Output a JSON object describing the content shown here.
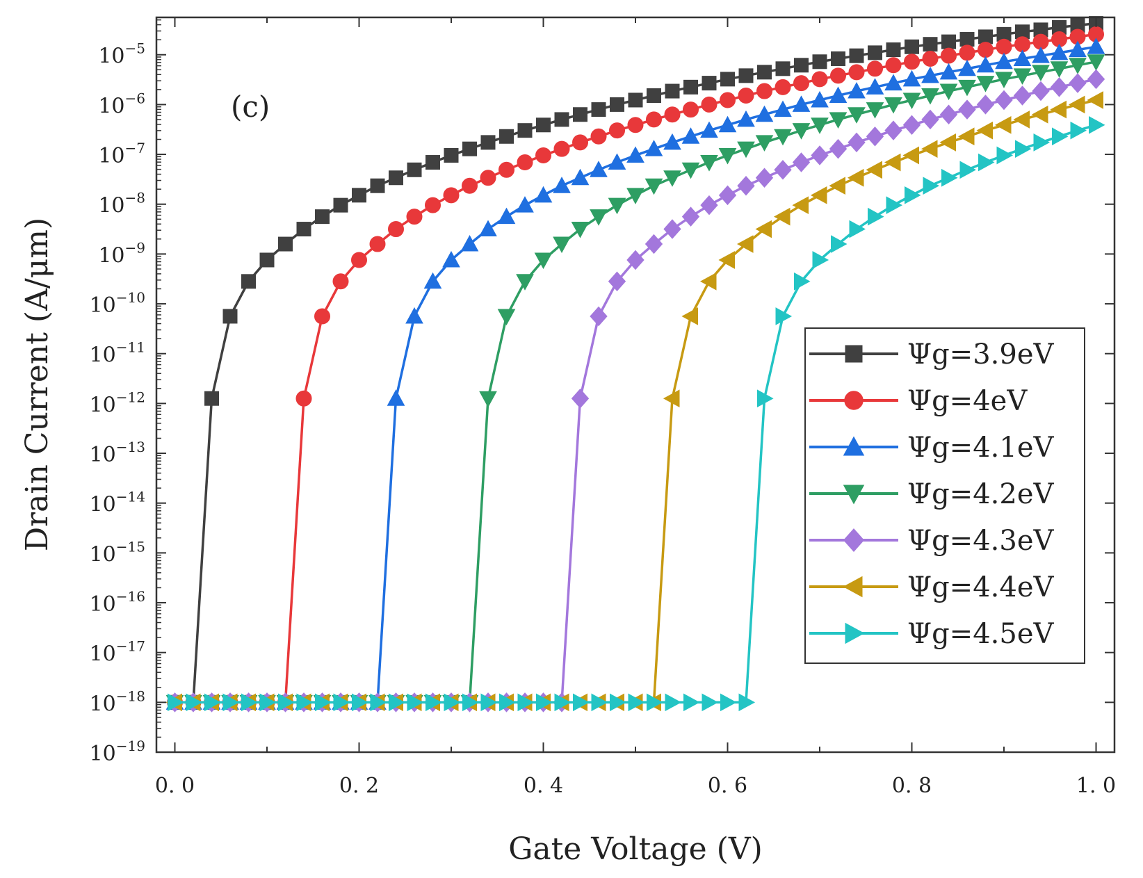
{
  "chart_data": {
    "type": "line",
    "panel_label": "(c)",
    "xlabel": "Gate Voltage (V)",
    "ylabel": "Drain Current (A/μm)",
    "y_scale": "log",
    "xlim": [
      -0.02,
      1.02
    ],
    "ylim_exponent": [
      -19,
      -4.25
    ],
    "x_ticks": [
      {
        "value": 0.0,
        "label": "0. 0"
      },
      {
        "value": 0.2,
        "label": "0. 2"
      },
      {
        "value": 0.4,
        "label": "0. 4"
      },
      {
        "value": 0.6,
        "label": "0. 6"
      },
      {
        "value": 0.8,
        "label": "0. 8"
      },
      {
        "value": 1.0,
        "label": "1. 0"
      }
    ],
    "y_ticks": [
      {
        "exponent": -19,
        "base": "10",
        "exp_label": "−19"
      },
      {
        "exponent": -18,
        "base": "10",
        "exp_label": "−18"
      },
      {
        "exponent": -17,
        "base": "10",
        "exp_label": "−17"
      },
      {
        "exponent": -16,
        "base": "10",
        "exp_label": "−16"
      },
      {
        "exponent": -15,
        "base": "10",
        "exp_label": "−15"
      },
      {
        "exponent": -14,
        "base": "10",
        "exp_label": "−14"
      },
      {
        "exponent": -13,
        "base": "10",
        "exp_label": "−13"
      },
      {
        "exponent": -12,
        "base": "10",
        "exp_label": "−12"
      },
      {
        "exponent": -11,
        "base": "10",
        "exp_label": "−11"
      },
      {
        "exponent": -10,
        "base": "10",
        "exp_label": "−10"
      },
      {
        "exponent": -9,
        "base": "10",
        "exp_label": "−9"
      },
      {
        "exponent": -8,
        "base": "10",
        "exp_label": "−8"
      },
      {
        "exponent": -7,
        "base": "10",
        "exp_label": "−7"
      },
      {
        "exponent": -6,
        "base": "10",
        "exp_label": "−6"
      },
      {
        "exponent": -5,
        "base": "10",
        "exp_label": "−5"
      }
    ],
    "legend_position": "right-middle",
    "series": [
      {
        "name": "Ψg=3.9eV",
        "color": "#404040",
        "marker": "square",
        "threshold_v": 0.02,
        "points": [
          [
            0.04,
            -11.9
          ],
          [
            0.06,
            -10.25
          ],
          [
            0.08,
            -9.55
          ],
          [
            0.1,
            -9.12
          ],
          [
            0.12,
            -8.8
          ],
          [
            0.14,
            -8.5
          ],
          [
            0.16,
            -8.25
          ],
          [
            0.18,
            -8.02
          ],
          [
            0.2,
            -7.82
          ],
          [
            0.22,
            -7.63
          ],
          [
            0.24,
            -7.47
          ],
          [
            0.26,
            -7.31
          ],
          [
            0.28,
            -7.16
          ],
          [
            0.3,
            -7.02
          ],
          [
            0.32,
            -6.89
          ],
          [
            0.34,
            -6.76
          ],
          [
            0.36,
            -6.64
          ],
          [
            0.38,
            -6.52
          ],
          [
            0.4,
            -6.41
          ],
          [
            0.42,
            -6.3
          ],
          [
            0.44,
            -6.2
          ],
          [
            0.46,
            -6.1
          ],
          [
            0.48,
            -6.0
          ],
          [
            0.5,
            -5.91
          ],
          [
            0.52,
            -5.82
          ],
          [
            0.54,
            -5.73
          ],
          [
            0.56,
            -5.65
          ],
          [
            0.58,
            -5.57
          ],
          [
            0.6,
            -5.49
          ],
          [
            0.62,
            -5.42
          ],
          [
            0.64,
            -5.35
          ],
          [
            0.66,
            -5.28
          ],
          [
            0.68,
            -5.21
          ],
          [
            0.7,
            -5.14
          ],
          [
            0.72,
            -5.08
          ],
          [
            0.74,
            -5.02
          ],
          [
            0.76,
            -4.96
          ],
          [
            0.78,
            -4.9
          ],
          [
            0.8,
            -4.84
          ],
          [
            0.82,
            -4.79
          ],
          [
            0.84,
            -4.74
          ],
          [
            0.86,
            -4.69
          ],
          [
            0.88,
            -4.64
          ],
          [
            0.9,
            -4.59
          ],
          [
            0.92,
            -4.54
          ],
          [
            0.94,
            -4.5
          ],
          [
            0.96,
            -4.45
          ],
          [
            0.98,
            -4.41
          ],
          [
            1.0,
            -4.37
          ]
        ]
      },
      {
        "name": "Ψg=4eV",
        "color": "#e8383a",
        "marker": "circle",
        "threshold_v": 0.12,
        "points": [
          [
            0.14,
            -11.9
          ],
          [
            0.16,
            -10.25
          ],
          [
            0.18,
            -9.55
          ],
          [
            0.2,
            -9.12
          ],
          [
            0.22,
            -8.8
          ],
          [
            0.24,
            -8.5
          ],
          [
            0.26,
            -8.25
          ],
          [
            0.28,
            -8.02
          ],
          [
            0.3,
            -7.82
          ],
          [
            0.32,
            -7.63
          ],
          [
            0.34,
            -7.47
          ],
          [
            0.36,
            -7.31
          ],
          [
            0.38,
            -7.16
          ],
          [
            0.4,
            -7.02
          ],
          [
            0.42,
            -6.89
          ],
          [
            0.44,
            -6.76
          ],
          [
            0.46,
            -6.64
          ],
          [
            0.48,
            -6.52
          ],
          [
            0.5,
            -6.41
          ],
          [
            0.52,
            -6.3
          ],
          [
            0.54,
            -6.2
          ],
          [
            0.56,
            -6.1
          ],
          [
            0.58,
            -6.0
          ],
          [
            0.6,
            -5.91
          ],
          [
            0.62,
            -5.82
          ],
          [
            0.64,
            -5.73
          ],
          [
            0.66,
            -5.65
          ],
          [
            0.68,
            -5.57
          ],
          [
            0.7,
            -5.49
          ],
          [
            0.72,
            -5.42
          ],
          [
            0.74,
            -5.35
          ],
          [
            0.76,
            -5.28
          ],
          [
            0.78,
            -5.21
          ],
          [
            0.8,
            -5.14
          ],
          [
            0.82,
            -5.08
          ],
          [
            0.84,
            -5.02
          ],
          [
            0.86,
            -4.96
          ],
          [
            0.88,
            -4.9
          ],
          [
            0.9,
            -4.84
          ],
          [
            0.92,
            -4.79
          ],
          [
            0.94,
            -4.74
          ],
          [
            0.96,
            -4.69
          ],
          [
            0.98,
            -4.64
          ],
          [
            1.0,
            -4.59
          ]
        ]
      },
      {
        "name": "Ψg=4.1eV",
        "color": "#1f6fe0",
        "marker": "triangle-up",
        "threshold_v": 0.22,
        "points": [
          [
            0.24,
            -11.9
          ],
          [
            0.26,
            -10.25
          ],
          [
            0.28,
            -9.55
          ],
          [
            0.3,
            -9.12
          ],
          [
            0.32,
            -8.8
          ],
          [
            0.34,
            -8.5
          ],
          [
            0.36,
            -8.25
          ],
          [
            0.38,
            -8.02
          ],
          [
            0.4,
            -7.82
          ],
          [
            0.42,
            -7.63
          ],
          [
            0.44,
            -7.47
          ],
          [
            0.46,
            -7.31
          ],
          [
            0.48,
            -7.16
          ],
          [
            0.5,
            -7.02
          ],
          [
            0.52,
            -6.89
          ],
          [
            0.54,
            -6.76
          ],
          [
            0.56,
            -6.64
          ],
          [
            0.58,
            -6.52
          ],
          [
            0.6,
            -6.41
          ],
          [
            0.62,
            -6.3
          ],
          [
            0.64,
            -6.2
          ],
          [
            0.66,
            -6.1
          ],
          [
            0.68,
            -6.0
          ],
          [
            0.7,
            -5.91
          ],
          [
            0.72,
            -5.82
          ],
          [
            0.74,
            -5.73
          ],
          [
            0.76,
            -5.65
          ],
          [
            0.78,
            -5.57
          ],
          [
            0.8,
            -5.49
          ],
          [
            0.82,
            -5.42
          ],
          [
            0.84,
            -5.35
          ],
          [
            0.86,
            -5.28
          ],
          [
            0.88,
            -5.21
          ],
          [
            0.9,
            -5.14
          ],
          [
            0.92,
            -5.08
          ],
          [
            0.94,
            -5.02
          ],
          [
            0.96,
            -4.96
          ],
          [
            0.98,
            -4.9
          ],
          [
            1.0,
            -4.84
          ]
        ]
      },
      {
        "name": "Ψg=4.2eV",
        "color": "#2e9e63",
        "marker": "triangle-down",
        "threshold_v": 0.32,
        "points": [
          [
            0.34,
            -11.9
          ],
          [
            0.36,
            -10.25
          ],
          [
            0.38,
            -9.55
          ],
          [
            0.4,
            -9.12
          ],
          [
            0.42,
            -8.8
          ],
          [
            0.44,
            -8.5
          ],
          [
            0.46,
            -8.25
          ],
          [
            0.48,
            -8.02
          ],
          [
            0.5,
            -7.82
          ],
          [
            0.52,
            -7.63
          ],
          [
            0.54,
            -7.47
          ],
          [
            0.56,
            -7.31
          ],
          [
            0.58,
            -7.16
          ],
          [
            0.6,
            -7.02
          ],
          [
            0.62,
            -6.89
          ],
          [
            0.64,
            -6.76
          ],
          [
            0.66,
            -6.64
          ],
          [
            0.68,
            -6.52
          ],
          [
            0.7,
            -6.41
          ],
          [
            0.72,
            -6.3
          ],
          [
            0.74,
            -6.2
          ],
          [
            0.76,
            -6.1
          ],
          [
            0.78,
            -6.0
          ],
          [
            0.8,
            -5.91
          ],
          [
            0.82,
            -5.82
          ],
          [
            0.84,
            -5.73
          ],
          [
            0.86,
            -5.65
          ],
          [
            0.88,
            -5.57
          ],
          [
            0.9,
            -5.49
          ],
          [
            0.92,
            -5.42
          ],
          [
            0.94,
            -5.35
          ],
          [
            0.96,
            -5.28
          ],
          [
            0.98,
            -5.21
          ],
          [
            1.0,
            -5.14
          ]
        ]
      },
      {
        "name": "Ψg=4.3eV",
        "color": "#a377dc",
        "marker": "diamond",
        "threshold_v": 0.42,
        "points": [
          [
            0.44,
            -11.9
          ],
          [
            0.46,
            -10.25
          ],
          [
            0.48,
            -9.55
          ],
          [
            0.5,
            -9.12
          ],
          [
            0.52,
            -8.8
          ],
          [
            0.54,
            -8.5
          ],
          [
            0.56,
            -8.25
          ],
          [
            0.58,
            -8.02
          ],
          [
            0.6,
            -7.82
          ],
          [
            0.62,
            -7.63
          ],
          [
            0.64,
            -7.47
          ],
          [
            0.66,
            -7.31
          ],
          [
            0.68,
            -7.16
          ],
          [
            0.7,
            -7.02
          ],
          [
            0.72,
            -6.89
          ],
          [
            0.74,
            -6.76
          ],
          [
            0.76,
            -6.64
          ],
          [
            0.78,
            -6.52
          ],
          [
            0.8,
            -6.41
          ],
          [
            0.82,
            -6.3
          ],
          [
            0.84,
            -6.2
          ],
          [
            0.86,
            -6.1
          ],
          [
            0.88,
            -6.0
          ],
          [
            0.9,
            -5.91
          ],
          [
            0.92,
            -5.82
          ],
          [
            0.94,
            -5.73
          ],
          [
            0.96,
            -5.65
          ],
          [
            0.98,
            -5.57
          ],
          [
            1.0,
            -5.49
          ]
        ]
      },
      {
        "name": "Ψg=4.4eV",
        "color": "#c79a12",
        "marker": "triangle-left",
        "threshold_v": 0.52,
        "points": [
          [
            0.54,
            -11.9
          ],
          [
            0.56,
            -10.25
          ],
          [
            0.58,
            -9.55
          ],
          [
            0.6,
            -9.12
          ],
          [
            0.62,
            -8.8
          ],
          [
            0.64,
            -8.5
          ],
          [
            0.66,
            -8.25
          ],
          [
            0.68,
            -8.02
          ],
          [
            0.7,
            -7.82
          ],
          [
            0.72,
            -7.63
          ],
          [
            0.74,
            -7.47
          ],
          [
            0.76,
            -7.31
          ],
          [
            0.78,
            -7.16
          ],
          [
            0.8,
            -7.02
          ],
          [
            0.82,
            -6.89
          ],
          [
            0.84,
            -6.76
          ],
          [
            0.86,
            -6.64
          ],
          [
            0.88,
            -6.52
          ],
          [
            0.9,
            -6.41
          ],
          [
            0.92,
            -6.3
          ],
          [
            0.94,
            -6.2
          ],
          [
            0.96,
            -6.1
          ],
          [
            0.98,
            -6.0
          ],
          [
            1.0,
            -5.91
          ]
        ]
      },
      {
        "name": "Ψg=4.5eV",
        "color": "#23c4c4",
        "marker": "triangle-right",
        "threshold_v": 0.62,
        "points": [
          [
            0.64,
            -11.9
          ],
          [
            0.66,
            -10.25
          ],
          [
            0.68,
            -9.55
          ],
          [
            0.7,
            -9.12
          ],
          [
            0.72,
            -8.8
          ],
          [
            0.74,
            -8.5
          ],
          [
            0.76,
            -8.25
          ],
          [
            0.78,
            -8.02
          ],
          [
            0.8,
            -7.82
          ],
          [
            0.82,
            -7.63
          ],
          [
            0.84,
            -7.47
          ],
          [
            0.86,
            -7.31
          ],
          [
            0.88,
            -7.16
          ],
          [
            0.9,
            -7.02
          ],
          [
            0.92,
            -6.89
          ],
          [
            0.94,
            -6.76
          ],
          [
            0.96,
            -6.64
          ],
          [
            0.98,
            -6.52
          ],
          [
            1.0,
            -6.41
          ]
        ]
      }
    ],
    "off_current_exponent": -18,
    "off_step_v": 0.02
  }
}
